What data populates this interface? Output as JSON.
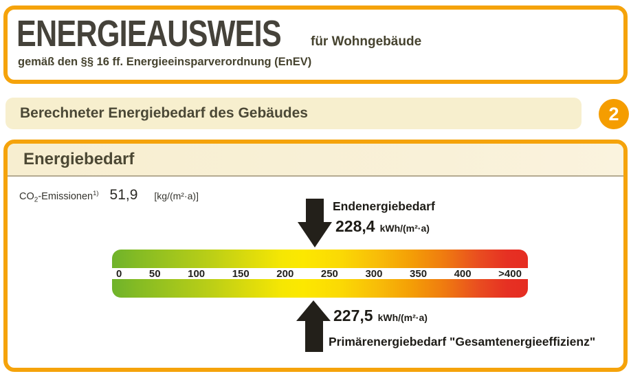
{
  "header": {
    "title": "ENERGIEAUSWEIS",
    "title_suffix": "für Wohngebäude",
    "subtitle": "gemäß den §§ 16 ff. Energieeinsparverordnung (EnEV)"
  },
  "section": {
    "label": "Berechneter Energiebedarf des Gebäudes",
    "number": "2"
  },
  "panel": {
    "title": "Energiebedarf",
    "co2": {
      "prefix": "CO",
      "sub": "2",
      "rest": "-Emissionen",
      "footnote": "1)",
      "value": "51,9",
      "unit": "[kg/(m²·a)]"
    },
    "end_energy": {
      "label": "Endenergiebedarf",
      "value": "228,4",
      "unit": "kWh/(m²·a)"
    },
    "primary_energy": {
      "value": "227,5",
      "unit": "kWh/(m²·a)",
      "label": "Primärenergiebedarf \"Gesamtenergieeffizienz\""
    }
  },
  "chart_data": {
    "type": "scale",
    "title": "Energiebedarf",
    "axis_ticks": [
      "0",
      "50",
      "100",
      "150",
      "200",
      "250",
      "300",
      "350",
      "400",
      ">400"
    ],
    "axis_range": [
      0,
      400
    ],
    "axis_unit": "kWh/(m²·a)",
    "gradient_colors": [
      "#6FB32B",
      "#FCE800",
      "#F49E06",
      "#E52D22"
    ],
    "markers": [
      {
        "name": "Endenergiebedarf",
        "value": 228.4,
        "arrow": "down",
        "position": "above-bar"
      },
      {
        "name": "Primärenergiebedarf \"Gesamtenergieeffizienz\"",
        "value": 227.5,
        "arrow": "up",
        "position": "below-bar"
      }
    ]
  },
  "colors": {
    "accent": "#F5A30B",
    "cream": "#F7EFCE",
    "panel-cream": "#F8F0D3",
    "ink": "#46432F",
    "dark": "#23201A"
  }
}
